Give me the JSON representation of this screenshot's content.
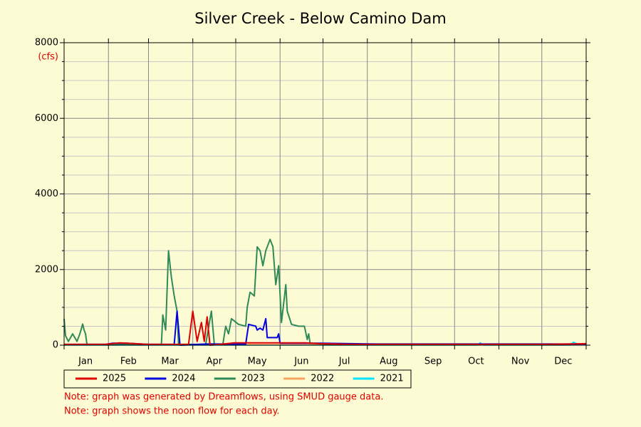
{
  "chart_data": {
    "type": "line",
    "title": "Silver Creek - Below Camino Dam",
    "y_label": "(cfs)",
    "xlim": [
      1,
      366
    ],
    "xticks": [
      1,
      32,
      60,
      91,
      121,
      152,
      182,
      213,
      244,
      274,
      305,
      335,
      366
    ],
    "month_labels": [
      {
        "value": 16,
        "label": "Jan"
      },
      {
        "value": 46,
        "label": "Feb"
      },
      {
        "value": 75,
        "label": "Mar"
      },
      {
        "value": 106,
        "label": "Apr"
      },
      {
        "value": 136,
        "label": "May"
      },
      {
        "value": 167,
        "label": "Jun"
      },
      {
        "value": 197,
        "label": "Jul"
      },
      {
        "value": 228,
        "label": "Aug"
      },
      {
        "value": 259,
        "label": "Sep"
      },
      {
        "value": 289,
        "label": "Oct"
      },
      {
        "value": 320,
        "label": "Nov"
      },
      {
        "value": 350,
        "label": "Dec"
      }
    ],
    "ylim": [
      0,
      8000
    ],
    "yticks": [
      0,
      2000,
      4000,
      6000,
      8000
    ],
    "minor_yticks": [
      500,
      1000,
      1500,
      2500,
      3000,
      3500,
      4500,
      5000,
      5500,
      6500,
      7000,
      7500
    ],
    "grid": true,
    "series": [
      {
        "name": "2025",
        "color": "#e00000",
        "x": [
          1,
          30,
          40,
          60,
          88,
          91,
          94,
          97,
          99,
          101,
          103,
          110,
          120,
          140,
          170,
          180,
          200,
          300,
          340,
          366
        ],
        "values": [
          20,
          20,
          60,
          20,
          20,
          900,
          100,
          600,
          100,
          750,
          0,
          20,
          60,
          60,
          60,
          40,
          20,
          20,
          20,
          40
        ]
      },
      {
        "name": "2024",
        "color": "#0000e0",
        "x": [
          1,
          30,
          35,
          45,
          60,
          78,
          80,
          82,
          100,
          128,
          130,
          135,
          136,
          138,
          140,
          142,
          143,
          150,
          151,
          152,
          180,
          220,
          280,
          340,
          366
        ],
        "values": [
          20,
          20,
          50,
          50,
          20,
          20,
          900,
          0,
          30,
          30,
          550,
          500,
          400,
          450,
          400,
          700,
          200,
          200,
          300,
          50,
          50,
          30,
          30,
          30,
          30
        ]
      },
      {
        "name": "2023",
        "color": "#2e8b57",
        "x": [
          1,
          2,
          4,
          7,
          10,
          12,
          14,
          15,
          16,
          17,
          30,
          60,
          69,
          70,
          72,
          74,
          76,
          78,
          80,
          81,
          100,
          104,
          106,
          112,
          114,
          116,
          118,
          123,
          128,
          129,
          131,
          134,
          136,
          138,
          140,
          142,
          145,
          147,
          149,
          151,
          153,
          156,
          157,
          160,
          165,
          169,
          171,
          172,
          173,
          182,
          190
        ],
        "values": [
          700,
          250,
          100,
          300,
          100,
          300,
          560,
          400,
          300,
          20,
          20,
          20,
          20,
          800,
          400,
          2500,
          1800,
          1300,
          900,
          20,
          20,
          900,
          20,
          20,
          500,
          300,
          700,
          550,
          500,
          1000,
          1400,
          1300,
          2600,
          2500,
          2100,
          2500,
          2800,
          2600,
          1600,
          2100,
          600,
          1600,
          900,
          550,
          500,
          500,
          150,
          300,
          50,
          30,
          10
        ]
      },
      {
        "name": "2022",
        "color": "#f4a460",
        "x": [
          1,
          60,
          120,
          180,
          240,
          300,
          366
        ],
        "values": [
          10,
          10,
          15,
          10,
          10,
          10,
          10
        ]
      },
      {
        "name": "2021",
        "color": "#00e5ff",
        "x": [
          1,
          120,
          240,
          290,
          292,
          294,
          340,
          355,
          357,
          360,
          366
        ],
        "values": [
          5,
          5,
          5,
          5,
          60,
          5,
          5,
          5,
          80,
          30,
          40
        ]
      }
    ],
    "notes": [
      "Note: graph was generated by Dreamflows, using SMUD gauge data.",
      "Note: graph shows the noon flow for each day."
    ]
  }
}
